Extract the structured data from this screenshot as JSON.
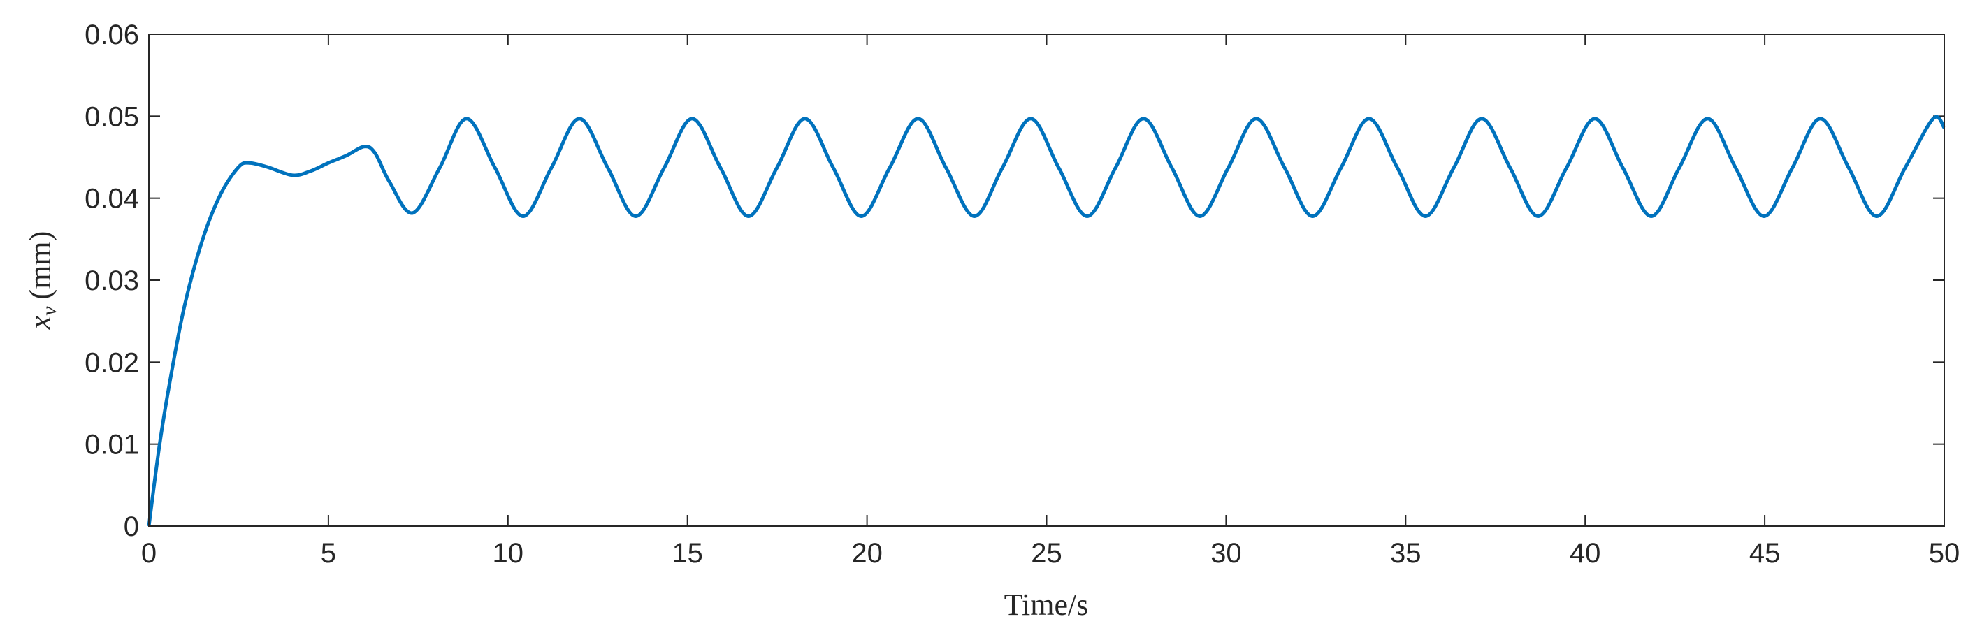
{
  "chart_data": {
    "type": "line",
    "xlabel": "Time/s",
    "ylabel": {
      "symbol": "x",
      "subscript": "v",
      "unit": "(mm)"
    },
    "xlim": [
      0,
      50
    ],
    "xticks": [
      0,
      5,
      10,
      15,
      20,
      25,
      30,
      35,
      40,
      45,
      50
    ],
    "ylim": [
      0,
      0.06
    ],
    "yticks": [
      0,
      0.01,
      0.02,
      0.03,
      0.04,
      0.05,
      0.06
    ],
    "series": [
      {
        "color": "#0072bd",
        "x": [
          0,
          0.3,
          0.6,
          1.0,
          1.5,
          2.0,
          2.5,
          2.8,
          3.3,
          4.0,
          4.5,
          5.0,
          5.5,
          6.0,
          6.3,
          6.7,
          7.35,
          8.1,
          8.85,
          9.64,
          10.42,
          11.21,
          11.99,
          12.78,
          13.56,
          14.35,
          15.13,
          15.92,
          16.7,
          17.49,
          18.27,
          19.06,
          19.84,
          20.63,
          21.42,
          22.2,
          22.99,
          23.77,
          24.56,
          25.34,
          26.13,
          26.92,
          27.7,
          28.49,
          29.27,
          30.06,
          30.84,
          31.63,
          32.41,
          33.2,
          33.98,
          34.77,
          35.55,
          36.34,
          37.12,
          37.91,
          38.69,
          39.48,
          40.27,
          41.05,
          41.84,
          42.62,
          43.41,
          44.19,
          44.98,
          45.77,
          46.55,
          47.34,
          48.12,
          48.91,
          49.69,
          50
        ],
        "values": [
          0,
          0.01,
          0.018,
          0.027,
          0.035,
          0.0405,
          0.0438,
          0.0443,
          0.0438,
          0.0428,
          0.0433,
          0.0443,
          0.0452,
          0.0463,
          0.0455,
          0.042,
          0.0382,
          0.0437,
          0.0497,
          0.0437,
          0.0378,
          0.0437,
          0.0497,
          0.0437,
          0.0378,
          0.0437,
          0.0497,
          0.0437,
          0.0378,
          0.0437,
          0.0497,
          0.0437,
          0.0378,
          0.0437,
          0.0497,
          0.0437,
          0.0378,
          0.0437,
          0.0497,
          0.0437,
          0.0378,
          0.0437,
          0.0497,
          0.0437,
          0.0378,
          0.0437,
          0.0497,
          0.0437,
          0.0378,
          0.0437,
          0.0497,
          0.0437,
          0.0378,
          0.0437,
          0.0497,
          0.0437,
          0.0378,
          0.0437,
          0.0497,
          0.0437,
          0.0378,
          0.0437,
          0.0497,
          0.0437,
          0.0378,
          0.0437,
          0.0497,
          0.0437,
          0.0378,
          0.0437,
          0.0497,
          0.0486
        ]
      }
    ]
  }
}
